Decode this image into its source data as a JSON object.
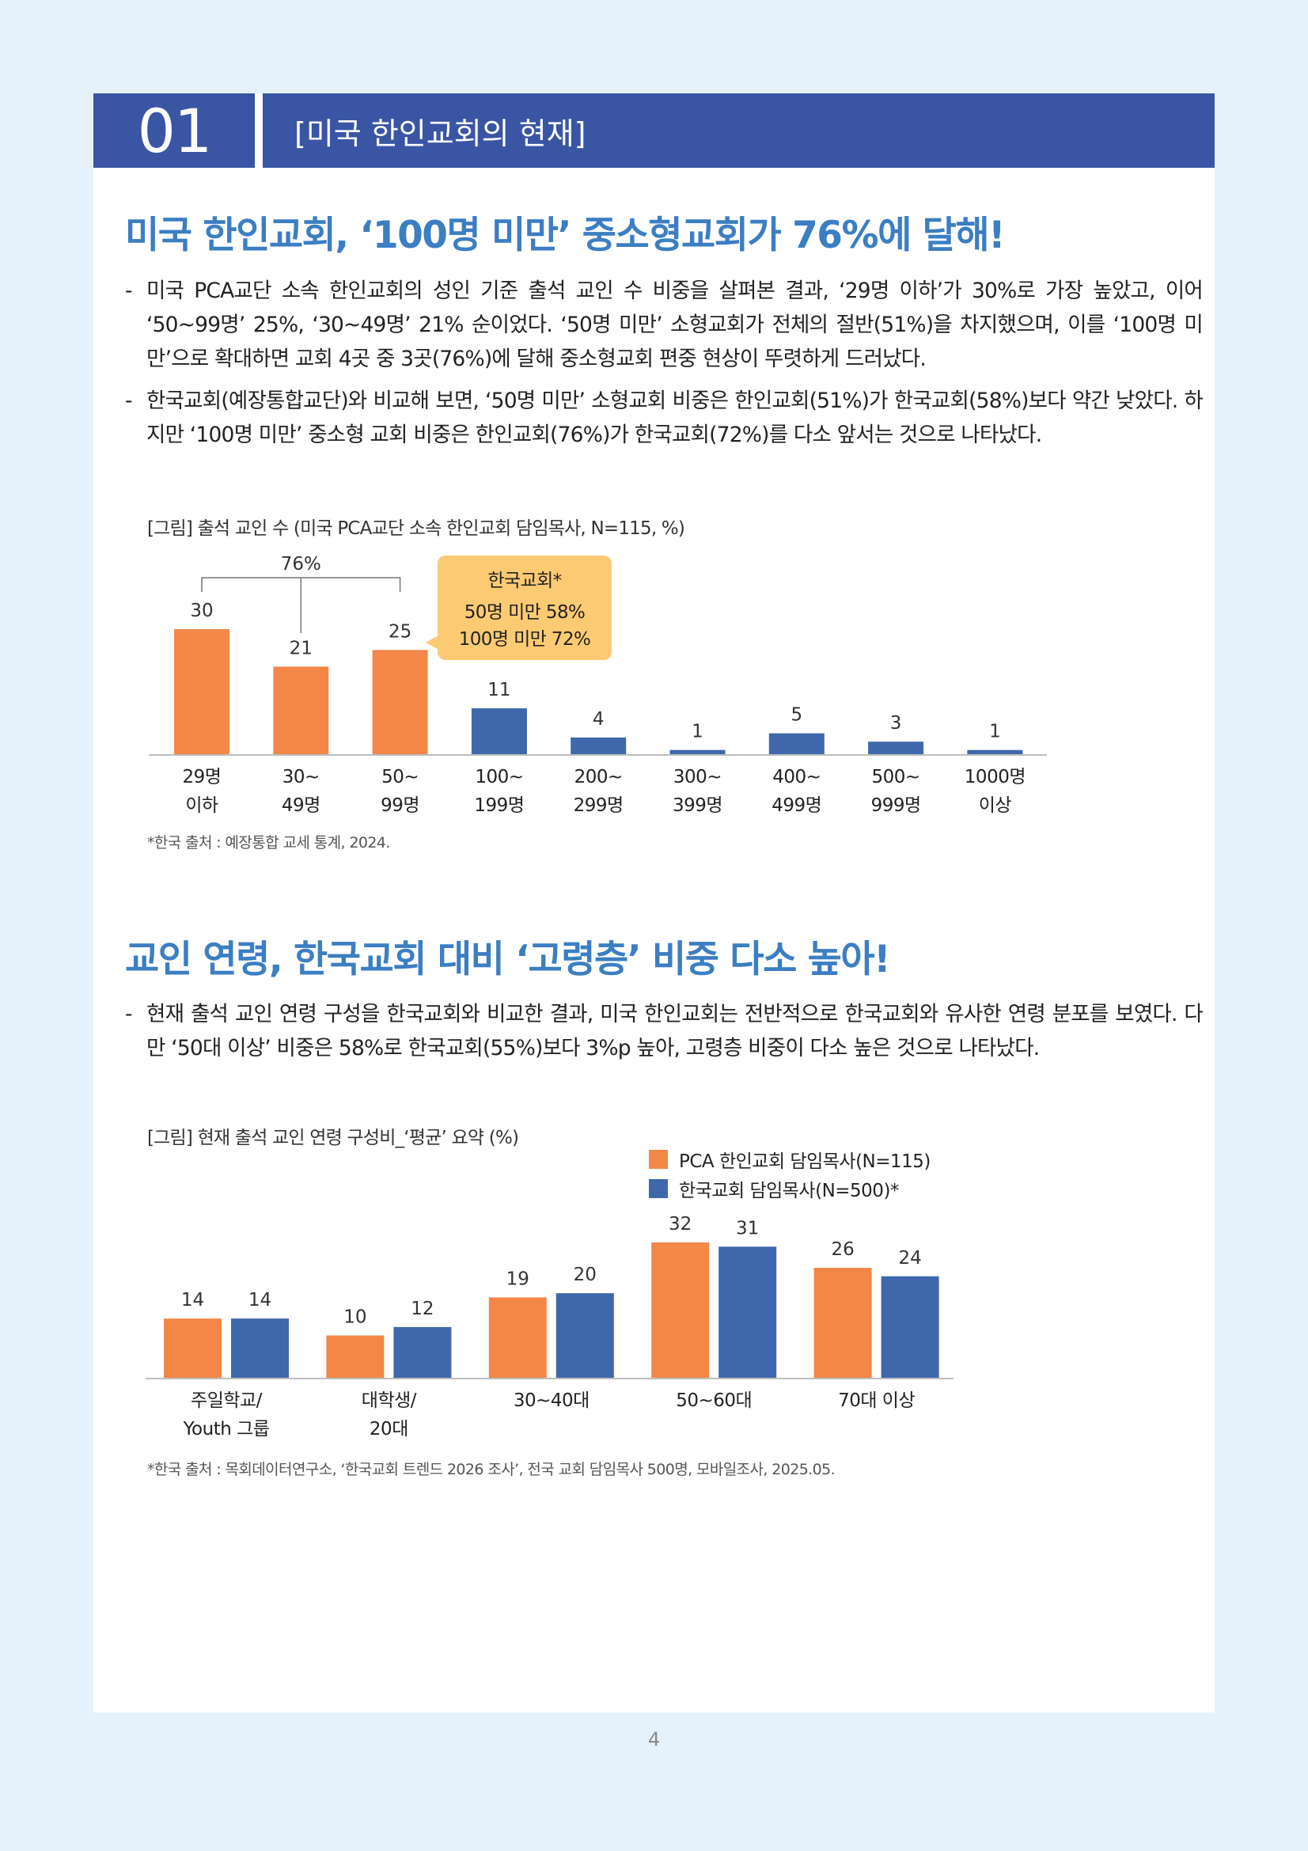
{
  "header": {
    "number": "01",
    "title": "[미국 한인교회의 현재]"
  },
  "section1": {
    "title": "미국 한인교회, ‘100명 미만’ 중소형교회가 76%에 달해!",
    "bullets": [
      "미국 PCA교단 소속 한인교회의 성인 기준 출석 교인 수 비중을 살펴본 결과, ‘29명 이하’가 30%로 가장 높았고, 이어 ‘50~99명’ 25%, ‘30~49명’ 21% 순이었다. ‘50명 미만’ 소형교회가 전체의 절반(51%)을 차지했으며, 이를 ‘100명 미만’으로 확대하면 교회 4곳 중 3곳(76%)에 달해 중소형교회 편중 현상이 뚜렷하게 드러났다.",
      "한국교회(예장통합교단)와 비교해 보면, ‘50명 미만’ 소형교회 비중은 한인교회(51%)가 한국교회(58%)보다 약간 낮았다. 하지만 ‘100명 미만’ 중소형 교회 비중은 한인교회(76%)가 한국교회(72%)를 다소 앞서는 것으로 나타났다."
    ],
    "figure_caption": "[그림] 출석 교인 수 (미국 PCA교단 소속 한인교회 담임목사, N=115, %)",
    "bracket_label": "76%",
    "callout": {
      "title": "한국교회*",
      "line1": "50명 미만 58%",
      "line2": "100명 미만 72%"
    },
    "source": "*한국 출처 : 예장통합 교세 통계, 2024."
  },
  "section2": {
    "title": "교인 연령, 한국교회 대비 ‘고령층’ 비중 다소 높아!",
    "bullets": [
      "현재 출석 교인 연령 구성을 한국교회와 비교한 결과, 미국 한인교회는 전반적으로 한국교회와 유사한 연령 분포를 보였다. 다만 ‘50대 이상’ 비중은 58%로 한국교회(55%)보다 3%p 높아, 고령층 비중이 다소 높은 것으로 나타났다."
    ],
    "figure_caption": "[그림] 현재 출석 교인 연령 구성비_‘평균’ 요약 (%)",
    "source": "*한국 출처 : 목회데이터연구소, ‘한국교회 트렌드 2026 조사’, 전국 교회 담임목사 500명, 모바일조사, 2025.05."
  },
  "chart_data": [
    {
      "type": "bar",
      "categories": [
        [
          "29명",
          "이하"
        ],
        [
          "30~",
          "49명"
        ],
        [
          "50~",
          "99명"
        ],
        [
          "100~",
          "199명"
        ],
        [
          "200~",
          "299명"
        ],
        [
          "300~",
          "399명"
        ],
        [
          "400~",
          "499명"
        ],
        [
          "500~",
          "999명"
        ],
        [
          "1000명",
          "이상"
        ]
      ],
      "values": [
        30,
        21,
        25,
        11,
        4,
        1,
        5,
        3,
        1
      ],
      "highlight_count": 3,
      "colors": {
        "highlight": "#f38748",
        "normal": "#3e68ab",
        "axis": "#bdbdbd"
      },
      "ylim": [
        0,
        30
      ],
      "grid": false
    },
    {
      "type": "bar",
      "categories": [
        [
          "주일학교/",
          "Youth 그룹"
        ],
        [
          "대학생/",
          "20대"
        ],
        [
          "30~40대"
        ],
        [
          "50~60대"
        ],
        [
          "70대 이상"
        ]
      ],
      "series": [
        {
          "name": "PCA 한인교회 담임목사(N=115)",
          "values": [
            14,
            10,
            19,
            32,
            26
          ],
          "color": "#f38748"
        },
        {
          "name": "한국교회 담임목사(N=500)*",
          "values": [
            14,
            12,
            20,
            31,
            24
          ],
          "color": "#3e68ab"
        }
      ],
      "ylim": [
        0,
        32
      ],
      "legend": "top-right",
      "grid": false
    }
  ],
  "page_number": "4"
}
